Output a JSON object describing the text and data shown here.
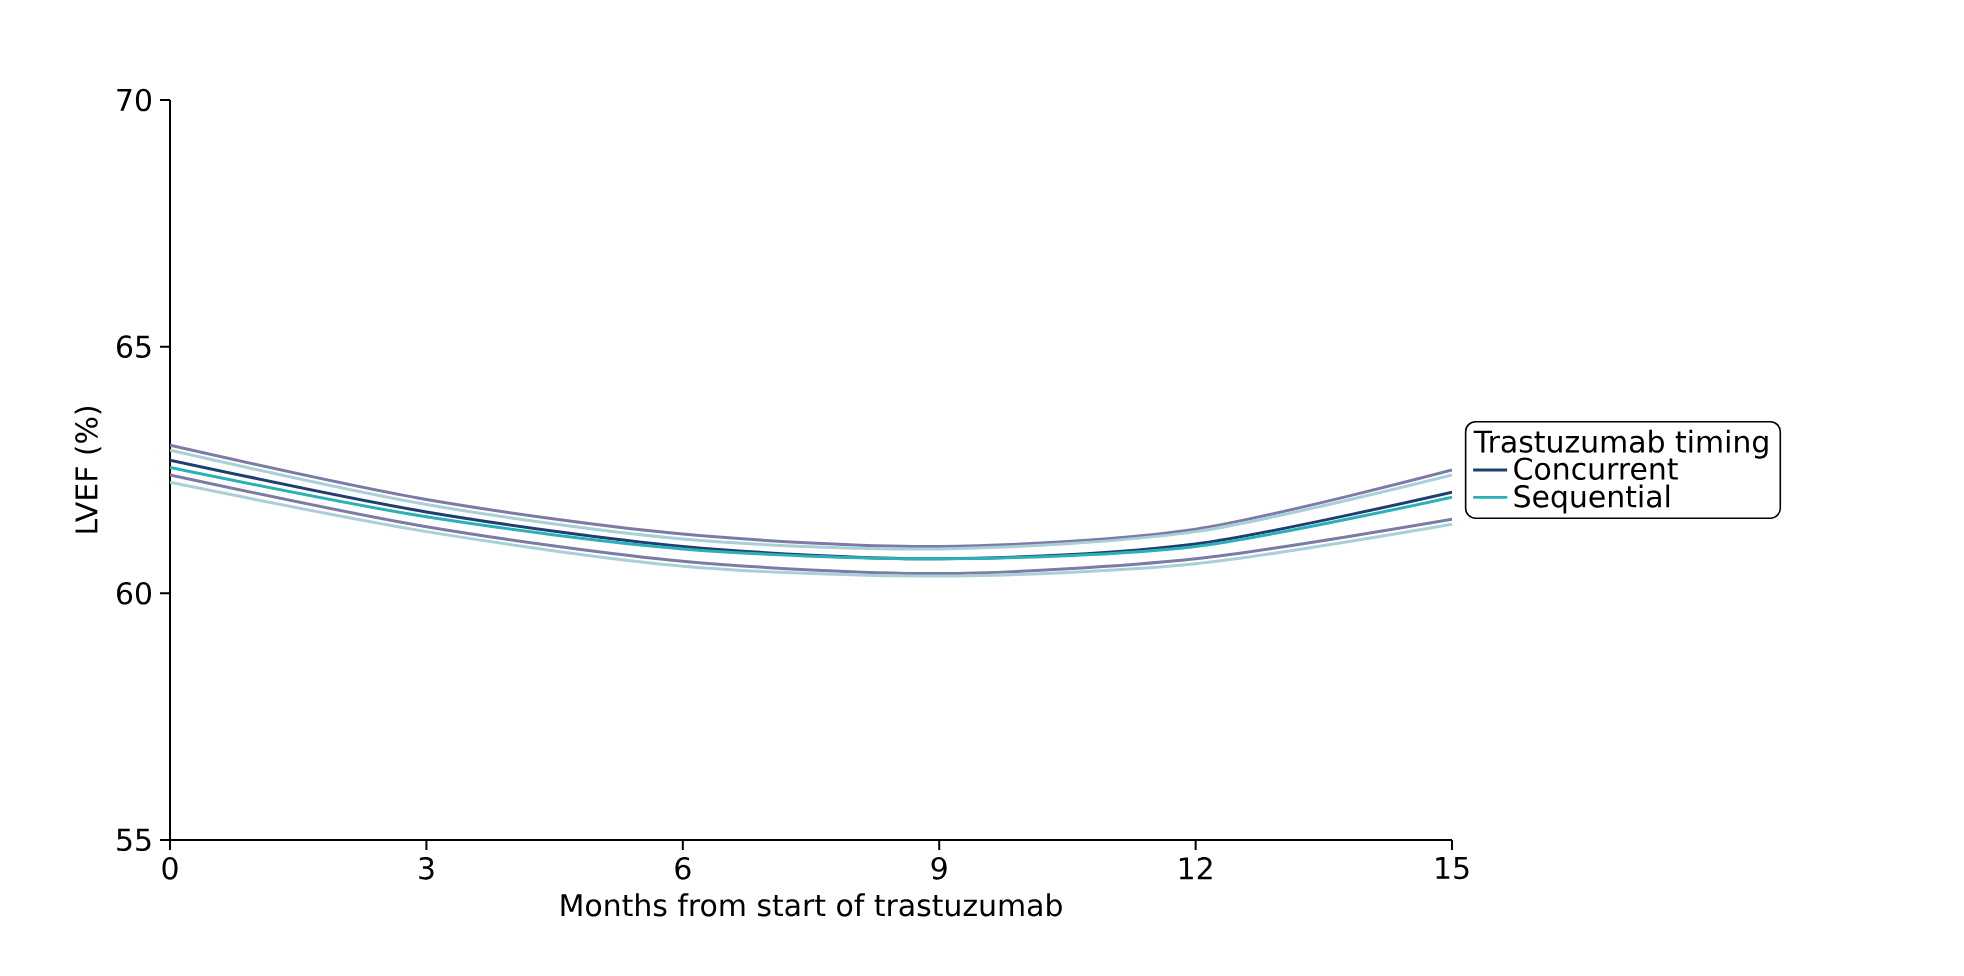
{
  "chart_data": {
    "type": "line",
    "xlabel": "Months from start of trastuzumab",
    "ylabel": "LVEF (%)",
    "legend_title": "Trastuzumab timing",
    "x": [
      0,
      3,
      6,
      9,
      12,
      15
    ],
    "series": [
      {
        "color": "#7b7ba6",
        "values": [
          63.0,
          61.9,
          61.2,
          60.95,
          61.3,
          62.5
        ]
      },
      {
        "color": "#7b7ba6",
        "values": [
          62.4,
          61.35,
          60.65,
          60.4,
          60.7,
          61.5
        ]
      },
      {
        "color": "#a8d0d6",
        "values": [
          62.9,
          61.8,
          61.1,
          60.9,
          61.25,
          62.4
        ]
      },
      {
        "color": "#a8d0d6",
        "values": [
          62.25,
          61.25,
          60.55,
          60.35,
          60.6,
          61.4
        ]
      },
      {
        "name": "Concurrent",
        "color": "#1f3f73",
        "values": [
          62.7,
          61.65,
          60.95,
          60.7,
          61.0,
          62.05
        ]
      },
      {
        "name": "Sequential",
        "color": "#2cb0b8",
        "values": [
          62.55,
          61.55,
          60.9,
          60.7,
          60.95,
          61.95
        ]
      }
    ],
    "xlim": [
      0,
      15
    ],
    "ylim": [
      55,
      70
    ],
    "xticks": [
      0,
      3,
      6,
      9,
      12,
      15
    ],
    "yticks": [
      55,
      60,
      65,
      70
    ],
    "grid": false,
    "legend": "right",
    "marker": "none",
    "line_style": "solid"
  }
}
